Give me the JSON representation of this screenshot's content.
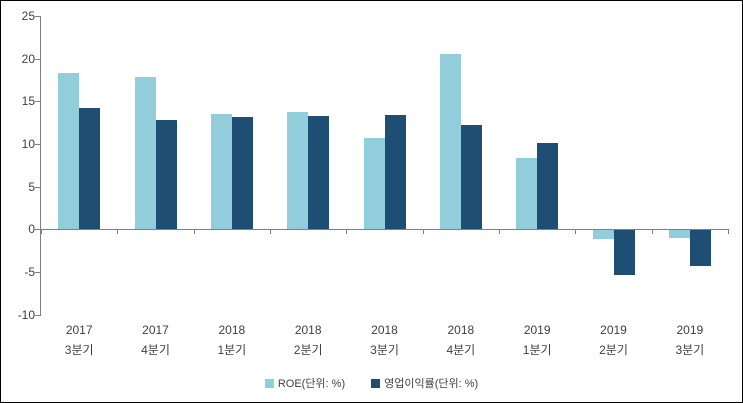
{
  "chart_data": {
    "type": "bar",
    "title": "",
    "xlabel": "",
    "ylabel": "",
    "categories": [
      [
        "2017",
        "3분기"
      ],
      [
        "2017",
        "4분기"
      ],
      [
        "2018",
        "1분기"
      ],
      [
        "2018",
        "2분기"
      ],
      [
        "2018",
        "3분기"
      ],
      [
        "2018",
        "4분기"
      ],
      [
        "2019",
        "1분기"
      ],
      [
        "2019",
        "2분기"
      ],
      [
        "2019",
        "3분기"
      ]
    ],
    "series": [
      {
        "name": "ROE(단위: %)",
        "color": "#92CDDC",
        "values": [
          18.3,
          17.8,
          13.5,
          13.8,
          10.7,
          20.6,
          8.3,
          -1.0,
          -0.9
        ]
      },
      {
        "name": "영업이익률(단위: %)",
        "color": "#1F4E74",
        "values": [
          14.2,
          12.8,
          13.1,
          13.3,
          13.4,
          12.2,
          10.1,
          -5.2,
          -4.2
        ]
      }
    ],
    "ylim": [
      -10,
      25
    ],
    "yticks": [
      25,
      20,
      15,
      10,
      5,
      0,
      -5,
      -10
    ],
    "grid": false,
    "legend_position": "bottom",
    "axis_color": "#808080",
    "text_color": "#3F3F3F",
    "background_color": "#FFFFFF",
    "border_color": "#000000"
  }
}
